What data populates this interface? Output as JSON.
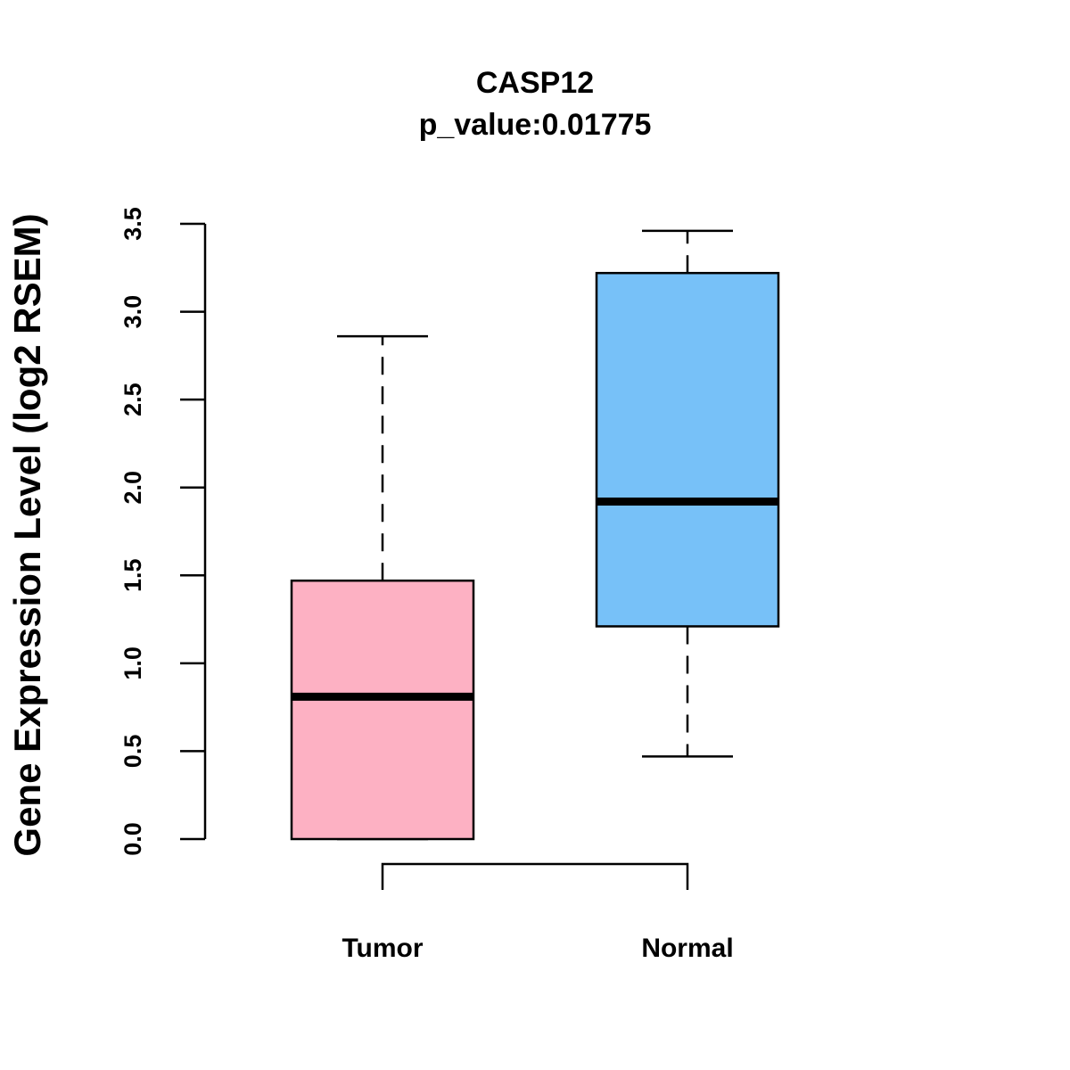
{
  "chart_data": {
    "type": "boxplot",
    "title": "CASP12",
    "subtitle": "p_value:0.01775",
    "xlabel": "",
    "ylabel": "Gene Expression Level (log2 RSEM)",
    "ylim": [
      0,
      3.5
    ],
    "yticks": [
      "0.0",
      "0.5",
      "1.0",
      "1.5",
      "2.0",
      "2.5",
      "3.0",
      "3.5"
    ],
    "yticks_values": [
      0,
      0.5,
      1.0,
      1.5,
      2.0,
      2.5,
      3.0,
      3.5
    ],
    "categories": [
      "Tumor",
      "Normal"
    ],
    "boxes": [
      {
        "name": "Tumor",
        "min": 0.0,
        "q1": 0.0,
        "median": 0.81,
        "q3": 1.47,
        "max": 2.86,
        "color": "#FDB1C3"
      },
      {
        "name": "Normal",
        "min": 0.47,
        "q1": 1.21,
        "median": 1.92,
        "q3": 3.22,
        "max": 3.46,
        "color": "#77C1F8"
      }
    ],
    "comparison_bracket": [
      "Tumor",
      "Normal"
    ],
    "grid": false,
    "legend": "none"
  }
}
